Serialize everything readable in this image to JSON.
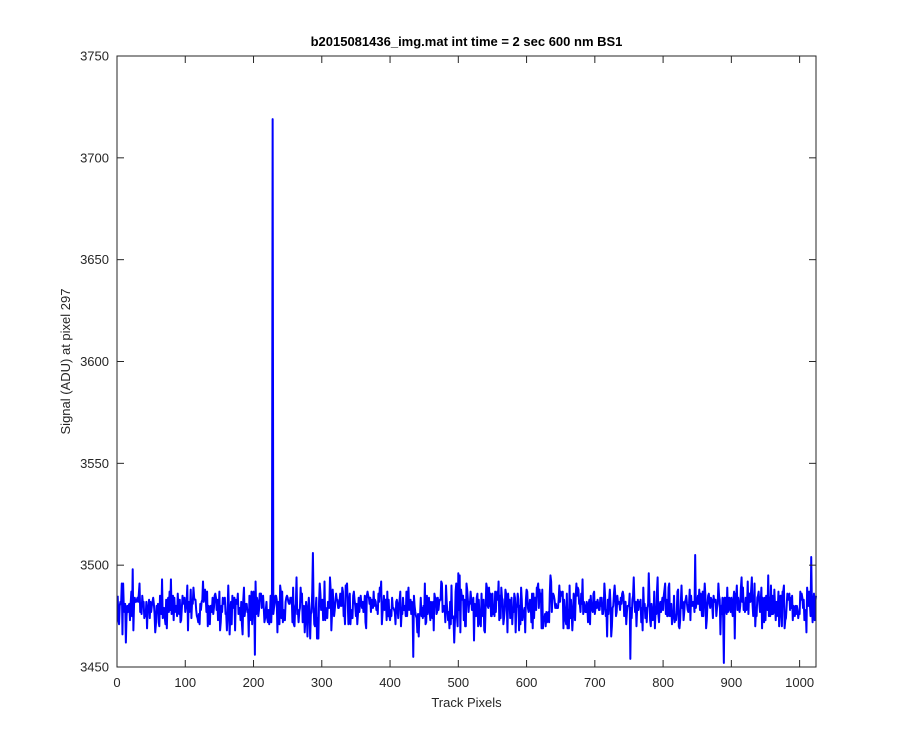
{
  "chart_data": {
    "type": "line",
    "title": "b2015081436_img.mat int time = 2 sec  600 nm BS1",
    "xlabel": "Track Pixels",
    "ylabel": "Signal (ADU) at pixel 297",
    "xlim": [
      0,
      1024
    ],
    "ylim": [
      3450,
      3750
    ],
    "xticks": [
      0,
      100,
      200,
      300,
      400,
      500,
      600,
      700,
      800,
      900,
      1000
    ],
    "yticks": [
      3450,
      3500,
      3550,
      3600,
      3650,
      3700,
      3750
    ],
    "grid": false,
    "line_color": "#0000ff",
    "series": [
      {
        "name": "",
        "x_start": 1,
        "x_step": 1,
        "baseline": 3480,
        "noise_amplitude": 8,
        "spike": {
          "x": 228,
          "y": 3719
        },
        "extremes": [
          {
            "x": 202,
            "y": 3456
          },
          {
            "x": 434,
            "y": 3455
          },
          {
            "x": 752,
            "y": 3454
          },
          {
            "x": 889,
            "y": 3452
          },
          {
            "x": 287,
            "y": 3506
          },
          {
            "x": 1017,
            "y": 3504
          },
          {
            "x": 847,
            "y": 3505
          }
        ]
      }
    ]
  }
}
